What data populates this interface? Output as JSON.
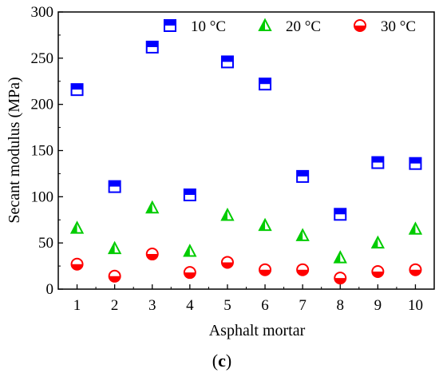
{
  "chart_data": {
    "type": "scatter",
    "title": "",
    "xlabel": "Asphalt mortar",
    "ylabel": "Secant modulus (MPa)",
    "xlim": [
      0.5,
      10.5
    ],
    "ylim": [
      0,
      300
    ],
    "x_ticks": [
      "1",
      "2",
      "3",
      "4",
      "5",
      "6",
      "7",
      "8",
      "9",
      "10"
    ],
    "y_ticks": [
      "0",
      "50",
      "100",
      "150",
      "200",
      "250",
      "300"
    ],
    "x": [
      1,
      2,
      3,
      4,
      5,
      6,
      7,
      8,
      9,
      10
    ],
    "series": [
      {
        "name": "10 °C",
        "marker": "half-filled-square",
        "color": "#0000ff",
        "values": [
          216,
          111,
          262,
          102,
          246,
          222,
          122,
          81,
          137,
          136
        ]
      },
      {
        "name": "20 °C",
        "marker": "half-filled-triangle",
        "color": "#00cc00",
        "values": [
          66,
          44,
          88,
          41,
          80,
          69,
          58,
          34,
          50,
          65
        ]
      },
      {
        "name": "30 °C",
        "marker": "half-filled-circle",
        "color": "#ff0000",
        "values": [
          27,
          14,
          38,
          18,
          29,
          21,
          21,
          12,
          19,
          21
        ]
      }
    ],
    "legend_position": "top",
    "grid": false
  },
  "caption": {
    "open": "(",
    "letter": "c",
    "close": ")"
  }
}
